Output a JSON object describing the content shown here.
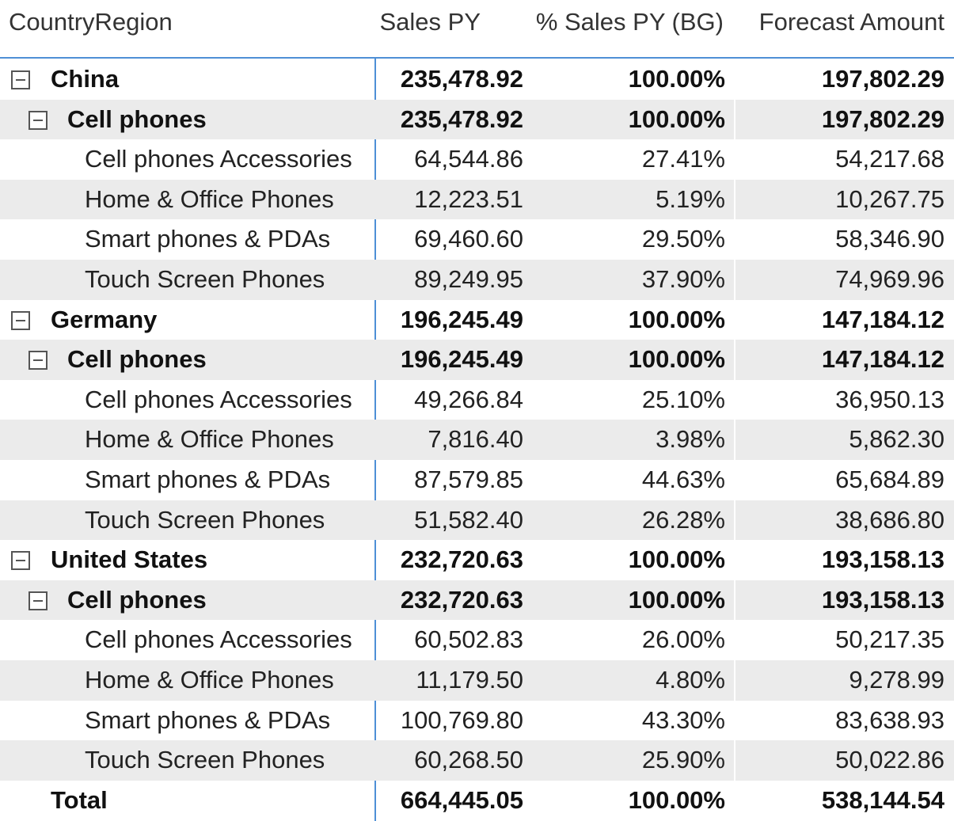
{
  "header": {
    "col_region": "CountryRegion",
    "col_sales_py": "Sales PY",
    "col_pct_sales_py": "% Sales PY (BG)",
    "col_forecast": "Forecast Amount"
  },
  "rows": [
    {
      "label": "China",
      "sales_py": "235,478.92",
      "pct": "100.00%",
      "forecast": "197,802.29"
    },
    {
      "label": "Cell phones",
      "sales_py": "235,478.92",
      "pct": "100.00%",
      "forecast": "197,802.29"
    },
    {
      "label": "Cell phones Accessories",
      "sales_py": "64,544.86",
      "pct": "27.41%",
      "forecast": "54,217.68"
    },
    {
      "label": "Home & Office Phones",
      "sales_py": "12,223.51",
      "pct": "5.19%",
      "forecast": "10,267.75"
    },
    {
      "label": "Smart phones & PDAs",
      "sales_py": "69,460.60",
      "pct": "29.50%",
      "forecast": "58,346.90"
    },
    {
      "label": "Touch Screen Phones",
      "sales_py": "89,249.95",
      "pct": "37.90%",
      "forecast": "74,969.96"
    },
    {
      "label": "Germany",
      "sales_py": "196,245.49",
      "pct": "100.00%",
      "forecast": "147,184.12"
    },
    {
      "label": "Cell phones",
      "sales_py": "196,245.49",
      "pct": "100.00%",
      "forecast": "147,184.12"
    },
    {
      "label": "Cell phones Accessories",
      "sales_py": "49,266.84",
      "pct": "25.10%",
      "forecast": "36,950.13"
    },
    {
      "label": "Home & Office Phones",
      "sales_py": "7,816.40",
      "pct": "3.98%",
      "forecast": "5,862.30"
    },
    {
      "label": "Smart phones & PDAs",
      "sales_py": "87,579.85",
      "pct": "44.63%",
      "forecast": "65,684.89"
    },
    {
      "label": "Touch Screen Phones",
      "sales_py": "51,582.40",
      "pct": "26.28%",
      "forecast": "38,686.80"
    },
    {
      "label": "United States",
      "sales_py": "232,720.63",
      "pct": "100.00%",
      "forecast": "193,158.13"
    },
    {
      "label": "Cell phones",
      "sales_py": "232,720.63",
      "pct": "100.00%",
      "forecast": "193,158.13"
    },
    {
      "label": "Cell phones Accessories",
      "sales_py": "60,502.83",
      "pct": "26.00%",
      "forecast": "50,217.35"
    },
    {
      "label": "Home & Office Phones",
      "sales_py": "11,179.50",
      "pct": "4.80%",
      "forecast": "9,278.99"
    },
    {
      "label": "Smart phones & PDAs",
      "sales_py": "100,769.80",
      "pct": "43.30%",
      "forecast": "83,638.93"
    },
    {
      "label": "Touch Screen Phones",
      "sales_py": "60,268.50",
      "pct": "25.90%",
      "forecast": "50,022.86"
    }
  ],
  "total": {
    "label": "Total",
    "sales_py": "664,445.05",
    "pct": "100.00%",
    "forecast": "538,144.54"
  },
  "colors": {
    "accent": "#4e8fd6",
    "row_shade": "#ebebeb",
    "text": "#222222"
  },
  "icons": {
    "expand_collapse": "collapse-minus-icon"
  }
}
